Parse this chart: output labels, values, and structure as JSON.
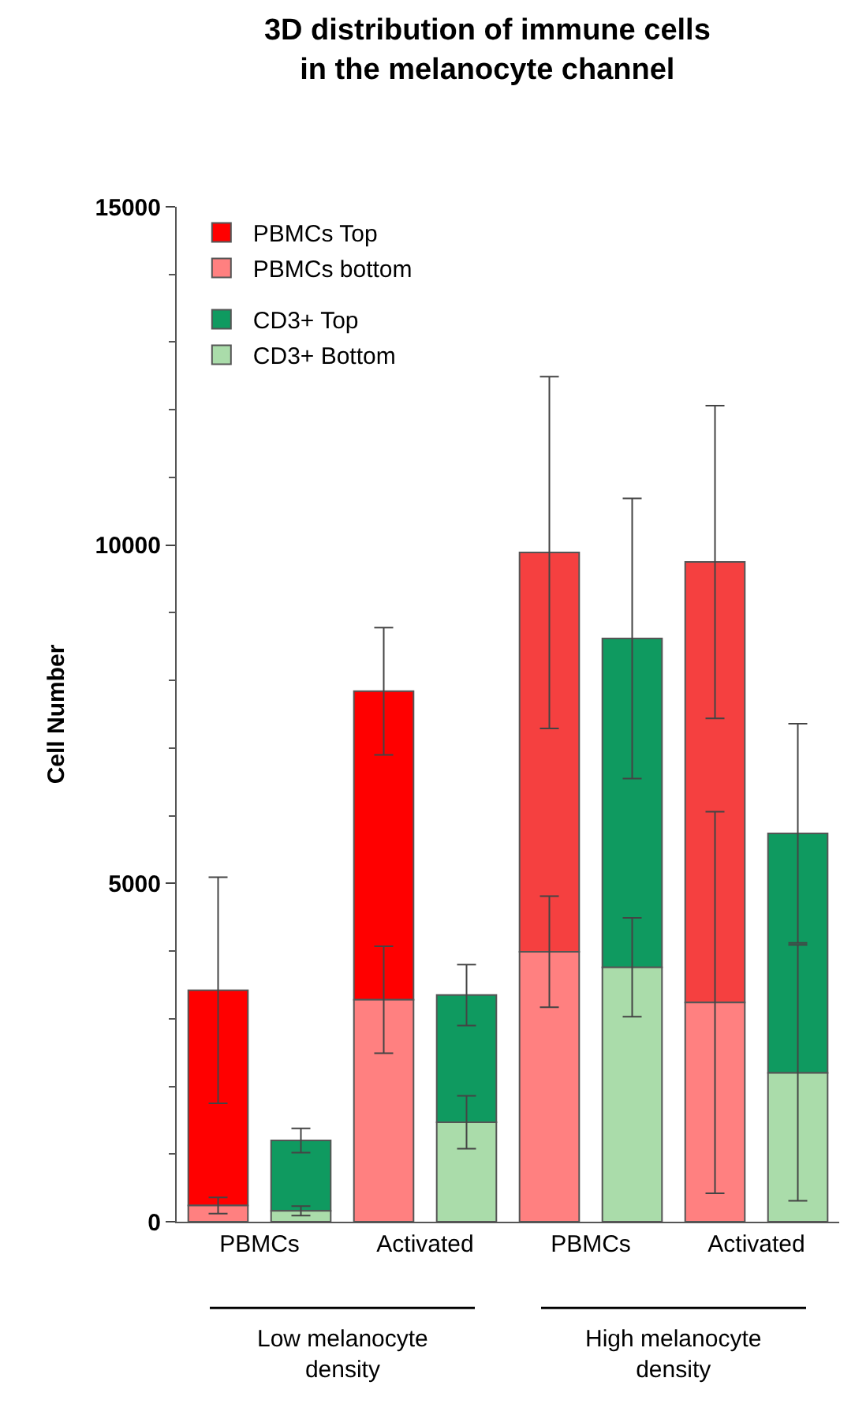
{
  "chart_data": {
    "type": "bar",
    "title": "3D distribution of immune cells\nin the melanocyte channel",
    "ylabel": "Cell Number",
    "categories": [
      "PBMCs",
      null,
      "Activated",
      null,
      "PBMCs",
      null,
      "Activated",
      null
    ],
    "stacked": true,
    "series": [
      {
        "name": "PBMCs bottom",
        "color": "#ff8080",
        "values": [
          240,
          null,
          3280,
          null,
          3990,
          null,
          3240,
          null
        ],
        "errors": [
          120,
          null,
          790,
          null,
          820,
          null,
          2820,
          null
        ]
      },
      {
        "name": "PBMCs Top",
        "color": "#ff0000",
        "colors": [
          "#ff0000",
          null,
          "#ff0000",
          null,
          "#f54040",
          null,
          "#f54040",
          null
        ],
        "values": [
          3180,
          null,
          4560,
          null,
          5900,
          null,
          6510,
          null
        ],
        "errors": [
          1670,
          null,
          940,
          null,
          2600,
          null,
          2310,
          null
        ]
      },
      {
        "name": "CD3+ Bottom",
        "color": "#aadcaa",
        "values": [
          null,
          160,
          null,
          1470,
          null,
          3760,
          null,
          2200
        ],
        "errors": [
          null,
          70,
          null,
          390,
          null,
          730,
          null,
          1890
        ]
      },
      {
        "name": "CD3+ Top",
        "color": "#0f9a60",
        "values": [
          null,
          1040,
          null,
          1880,
          null,
          4860,
          null,
          3540
        ],
        "errors": [
          null,
          180,
          null,
          450,
          null,
          2070,
          null,
          1620
        ]
      }
    ],
    "ylim": [
      0,
      15000
    ],
    "yticks": [
      0,
      5000,
      10000,
      15000
    ],
    "legend": "top left",
    "annotations": [
      "Low melanocyte\ndensity",
      "High melanocyte\ndensity"
    ]
  }
}
